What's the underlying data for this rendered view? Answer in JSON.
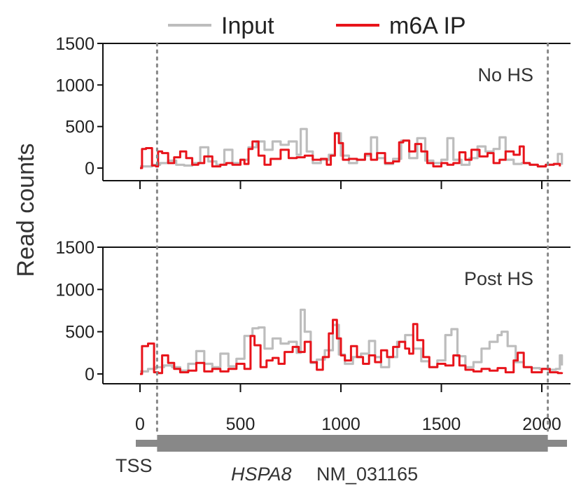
{
  "chart_data": {
    "type": "line",
    "ylabel": "Read counts",
    "xlabel": "",
    "xlim": [
      0,
      2100
    ],
    "ylim": [
      0,
      1500
    ],
    "x_ticks": [
      "0",
      "500",
      "1000",
      "1500",
      "2000"
    ],
    "y_ticks": [
      "0",
      "500",
      "1000",
      "1500"
    ],
    "legend": {
      "placement": "top",
      "entries": [
        {
          "label": "Input",
          "color": "#bdbdbd"
        },
        {
          "label": "m6A IP",
          "color": "#e8141b"
        }
      ]
    },
    "markers": {
      "cds_start": 85,
      "cds_end": 2030
    },
    "gene": {
      "tss_label": "TSS",
      "name": "HSPA8",
      "accession": "NM_031165"
    },
    "panels": [
      {
        "label": "No HS",
        "series": [
          {
            "name": "Input",
            "color": "#bdbdbd",
            "x": [
              0,
              60,
              100,
              140,
              180,
              220,
              260,
              300,
              340,
              380,
              420,
              460,
              500,
              540,
              580,
              620,
              660,
              700,
              740,
              780,
              800,
              830,
              860,
              900,
              940,
              970,
              1000,
              1040,
              1080,
              1120,
              1150,
              1180,
              1220,
              1260,
              1300,
              1340,
              1380,
              1420,
              1460,
              1500,
              1530,
              1560,
              1600,
              1640,
              1680,
              1720,
              1760,
              1790,
              1820,
              1860,
              1900,
              1940,
              1980,
              2020,
              2060,
              2080,
              2100
            ],
            "y": [
              20,
              40,
              60,
              90,
              40,
              30,
              60,
              250,
              80,
              40,
              220,
              60,
              100,
              250,
              320,
              220,
              320,
              280,
              320,
              160,
              470,
              200,
              60,
              100,
              160,
              420,
              150,
              60,
              100,
              150,
              370,
              120,
              50,
              110,
              330,
              120,
              360,
              90,
              60,
              100,
              360,
              100,
              40,
              120,
              260,
              200,
              230,
              370,
              100,
              50,
              60,
              40,
              20,
              40,
              50,
              170,
              40
            ]
          },
          {
            "name": "m6A IP",
            "color": "#e8141b",
            "x": [
              0,
              10,
              30,
              60,
              80,
              90,
              110,
              140,
              170,
              200,
              230,
              260,
              290,
              320,
              360,
              400,
              430,
              460,
              500,
              520,
              540,
              560,
              590,
              620,
              650,
              700,
              740,
              780,
              820,
              860,
              900,
              930,
              950,
              970,
              990,
              1010,
              1040,
              1080,
              1120,
              1150,
              1180,
              1220,
              1260,
              1290,
              1310,
              1340,
              1370,
              1400,
              1430,
              1460,
              1500,
              1530,
              1560,
              1590,
              1620,
              1650,
              1690,
              1730,
              1760,
              1790,
              1820,
              1860,
              1890,
              1910,
              1940,
              1980,
              2020,
              2060,
              2090
            ],
            "y": [
              0,
              230,
              240,
              30,
              20,
              200,
              180,
              60,
              130,
              200,
              120,
              40,
              60,
              140,
              20,
              40,
              60,
              40,
              100,
              50,
              230,
              320,
              150,
              40,
              110,
              220,
              120,
              130,
              150,
              100,
              110,
              40,
              150,
              420,
              300,
              100,
              110,
              100,
              170,
              100,
              180,
              60,
              80,
              310,
              330,
              200,
              290,
              200,
              60,
              20,
              60,
              40,
              60,
              190,
              100,
              220,
              140,
              180,
              60,
              100,
              200,
              160,
              260,
              60,
              40,
              20,
              40,
              50,
              20
            ]
          }
        ]
      },
      {
        "label": "Post HS",
        "series": [
          {
            "name": "Input",
            "color": "#bdbdbd",
            "x": [
              0,
              40,
              80,
              120,
              160,
              200,
              240,
              280,
              320,
              360,
              400,
              440,
              480,
              520,
              560,
              590,
              620,
              660,
              700,
              740,
              780,
              800,
              820,
              850,
              880,
              920,
              960,
              990,
              1020,
              1060,
              1100,
              1140,
              1170,
              1200,
              1240,
              1280,
              1320,
              1360,
              1400,
              1440,
              1480,
              1520,
              1550,
              1580,
              1620,
              1660,
              1700,
              1740,
              1780,
              1800,
              1830,
              1870,
              1910,
              1950,
              1990,
              2030,
              2070,
              2090,
              2100
            ],
            "y": [
              30,
              60,
              80,
              100,
              80,
              40,
              120,
              270,
              120,
              80,
              240,
              90,
              180,
              450,
              540,
              550,
              300,
              420,
              360,
              380,
              250,
              760,
              500,
              130,
              170,
              280,
              580,
              230,
              120,
              200,
              240,
              390,
              200,
              80,
              200,
              380,
              460,
              300,
              150,
              80,
              160,
              460,
              530,
              210,
              80,
              140,
              300,
              380,
              460,
              500,
              330,
              140,
              80,
              70,
              60,
              50,
              60,
              220,
              100
            ]
          },
          {
            "name": "m6A IP",
            "color": "#e8141b",
            "x": [
              0,
              10,
              40,
              70,
              90,
              110,
              140,
              170,
              200,
              240,
              280,
              320,
              360,
              400,
              440,
              480,
              520,
              550,
              570,
              600,
              630,
              660,
              690,
              720,
              760,
              790,
              820,
              850,
              880,
              910,
              940,
              960,
              980,
              1000,
              1020,
              1050,
              1080,
              1110,
              1140,
              1170,
              1200,
              1230,
              1260,
              1290,
              1320,
              1340,
              1360,
              1380,
              1410,
              1440,
              1480,
              1520,
              1560,
              1590,
              1620,
              1660,
              1700,
              1740,
              1780,
              1820,
              1860,
              1880,
              1910,
              1950,
              2000,
              2040,
              2080,
              2100
            ],
            "y": [
              0,
              330,
              360,
              20,
              10,
              220,
              130,
              60,
              20,
              40,
              130,
              30,
              60,
              30,
              60,
              120,
              60,
              450,
              340,
              80,
              160,
              190,
              120,
              260,
              320,
              260,
              380,
              140,
              50,
              200,
              480,
              640,
              420,
              220,
              160,
              330,
              200,
              120,
              220,
              140,
              280,
              200,
              320,
              380,
              300,
              240,
              590,
              400,
              200,
              80,
              120,
              100,
              220,
              100,
              50,
              30,
              60,
              40,
              70,
              20,
              160,
              250,
              80,
              20,
              60,
              20,
              10,
              20
            ]
          }
        ]
      }
    ]
  }
}
